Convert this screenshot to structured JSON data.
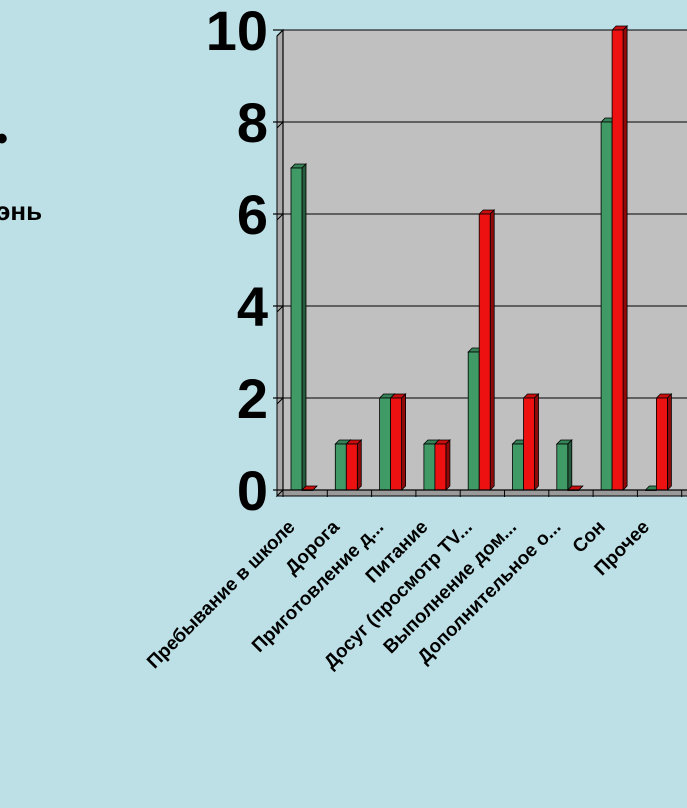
{
  "text_fragments": {
    "fragment_1": "•",
    "fragment_2": "энь"
  },
  "chart_data": {
    "type": "bar",
    "title": "",
    "xlabel": "",
    "ylabel": "",
    "ylim": [
      0,
      10
    ],
    "yticks": [
      0,
      2,
      4,
      6,
      8,
      10
    ],
    "grid": true,
    "legend": "none",
    "categories": [
      "Пребывание в школе",
      "Дорога",
      "Приготовление д...",
      "Питание",
      "Досуг (просмотр TV...",
      "Выполнение дом...",
      "Дополнительное о...",
      "Сон",
      "Прочее"
    ],
    "series": [
      {
        "color": "#3f9a66",
        "values": [
          7,
          1,
          2,
          1,
          3,
          1,
          1,
          8,
          0
        ]
      },
      {
        "color": "#ee1111",
        "values": [
          0,
          1,
          2,
          1,
          6,
          2,
          0,
          10,
          2
        ]
      }
    ]
  }
}
